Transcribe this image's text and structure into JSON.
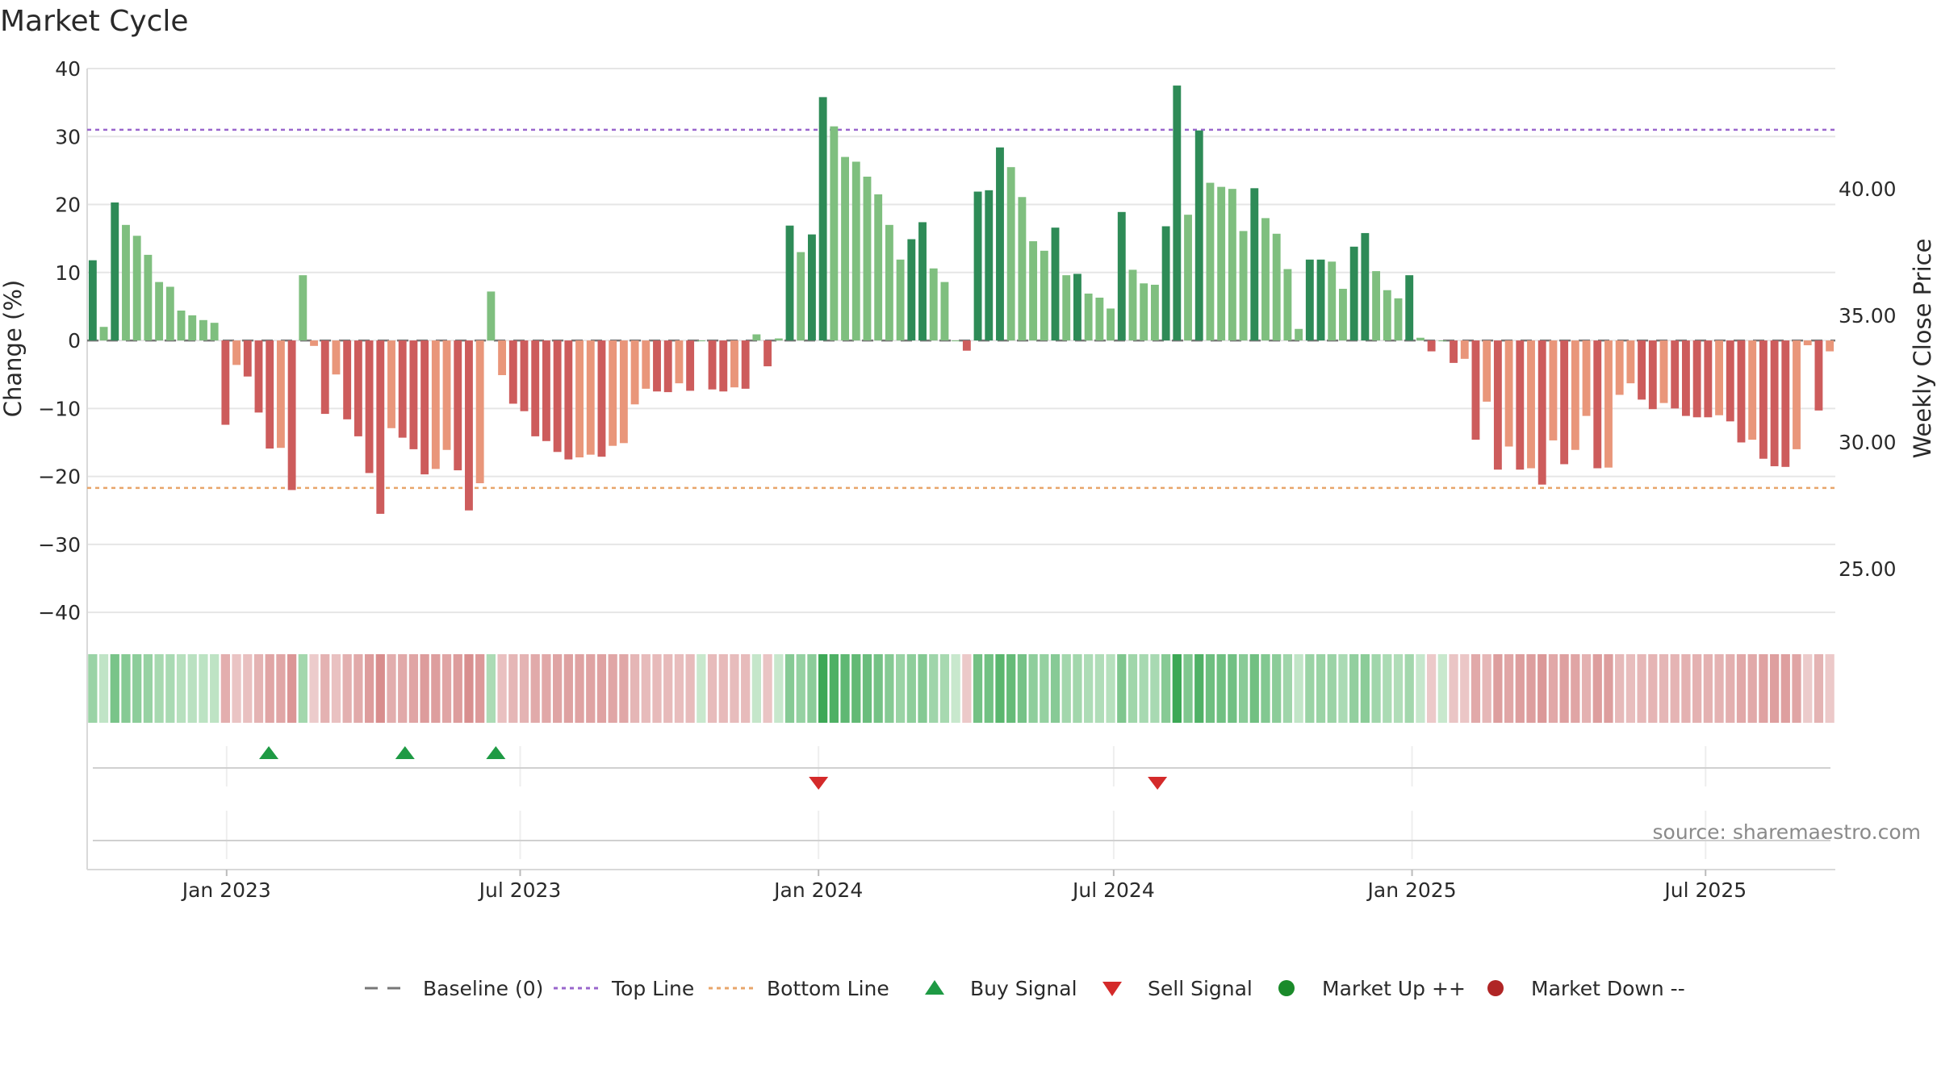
{
  "chart_data": {
    "type": "bar",
    "title": "Market Cycle",
    "ylabel": "Change (%)",
    "y2label": "Weekly Close Price",
    "ylim": [
      -42,
      40
    ],
    "y_ticks": [
      40,
      30,
      20,
      10,
      0,
      -10,
      -20,
      -30,
      -40
    ],
    "y2lim": [
      20.5,
      45.5
    ],
    "y2_ticks": [
      40.0,
      35.0,
      30.0,
      25.0
    ],
    "x_start": "2022-10-07",
    "x_end": "2025-09-19",
    "x_ticks": [
      {
        "label": "Jan 2023",
        "date": "2023-01-01"
      },
      {
        "label": "Jul 2023",
        "date": "2023-07-01"
      },
      {
        "label": "Jan 2024",
        "date": "2024-01-01"
      },
      {
        "label": "Jul 2024",
        "date": "2024-07-01"
      },
      {
        "label": "Jan 2025",
        "date": "2025-01-01"
      },
      {
        "label": "Jul 2025",
        "date": "2025-07-01"
      }
    ],
    "top_line": 31,
    "bottom_line": -21.7,
    "grid": true,
    "legend_position": "bottom-center",
    "values": [
      11.8,
      2.0,
      20.3,
      17.0,
      15.4,
      12.6,
      8.6,
      7.9,
      4.4,
      3.7,
      3.0,
      2.6,
      -12.4,
      -3.6,
      -5.3,
      -10.6,
      -15.9,
      -15.8,
      -22.0,
      9.6,
      -0.8,
      -10.8,
      -5.0,
      -11.6,
      -14.1,
      -19.5,
      -25.5,
      -12.9,
      -14.3,
      -16.0,
      -19.7,
      -18.9,
      -16.1,
      -19.1,
      -25.0,
      -21.0,
      7.2,
      -5.1,
      -9.3,
      -10.4,
      -14.1,
      -14.8,
      -16.4,
      -17.5,
      -17.2,
      -16.8,
      -17.1,
      -15.5,
      -15.1,
      -9.4,
      -7.1,
      -7.5,
      -7.6,
      -6.3,
      -7.4,
      0.0,
      -7.2,
      -7.5,
      -6.9,
      -7.1,
      0.9,
      -3.8,
      0.3,
      16.9,
      13.0,
      15.6,
      35.8,
      31.5,
      27.0,
      26.3,
      24.1,
      21.5,
      17.0,
      11.9,
      14.9,
      17.4,
      10.6,
      8.6,
      0.0,
      -1.5,
      21.9,
      22.1,
      28.4,
      25.5,
      21.1,
      14.6,
      13.2,
      16.6,
      9.6,
      9.8,
      6.9,
      6.3,
      4.7,
      18.9,
      10.4,
      8.4,
      8.2,
      16.8,
      37.5,
      18.5,
      30.9,
      23.2,
      22.6,
      22.3,
      16.1,
      22.4,
      18.0,
      15.7,
      10.5,
      1.7,
      11.9,
      11.9,
      11.6,
      7.6,
      13.8,
      15.8,
      10.2,
      7.4,
      6.2,
      9.6,
      0.4,
      -1.6,
      0.0,
      -3.3,
      -2.7,
      -14.6,
      -9.0,
      -19.0,
      -15.6,
      -19.0,
      -18.8,
      -21.2,
      -14.7,
      -18.2,
      -16.1,
      -11.1,
      -18.8,
      -18.7,
      -8.0,
      -6.3,
      -8.7,
      -10.1,
      -9.2,
      -10.0,
      -11.1,
      -11.3,
      -11.3,
      -11.0,
      -11.9,
      -15.0,
      -14.6,
      -17.4,
      -18.5,
      -18.6,
      -16.0,
      -0.7,
      -10.3,
      -1.6
    ],
    "buy_signals": [
      "2023-01-27",
      "2023-04-21",
      "2023-06-16"
    ],
    "sell_signals": [
      "2024-01-01",
      "2024-07-28"
    ],
    "legend": [
      {
        "label": "Baseline (0)",
        "kind": "dash",
        "color": "#777777"
      },
      {
        "label": "Top Line",
        "kind": "dot",
        "color": "#9966cc"
      },
      {
        "label": "Bottom Line",
        "kind": "dot",
        "color": "#e8a56a"
      },
      {
        "label": "Buy Signal",
        "kind": "tri-up",
        "color": "#1e9a44"
      },
      {
        "label": "Sell Signal",
        "kind": "tri-down",
        "color": "#d42a2a"
      },
      {
        "label": "Market Up ++",
        "kind": "circle",
        "color": "#1a8a2a"
      },
      {
        "label": "Market Down --",
        "kind": "circle",
        "color": "#b02525"
      }
    ],
    "colors": {
      "up_strong": "#2e8b57",
      "up_light": "#7fbf7f",
      "down_strong": "#cd5c5c",
      "down_light": "#e9967a",
      "top_line": "#9966cc",
      "bottom_line": "#e8a56a",
      "baseline": "#777777",
      "grid": "#e6e6e6",
      "buy": "#1e9a44",
      "sell": "#d42a2a"
    }
  },
  "source": "source: sharemaestro.com"
}
